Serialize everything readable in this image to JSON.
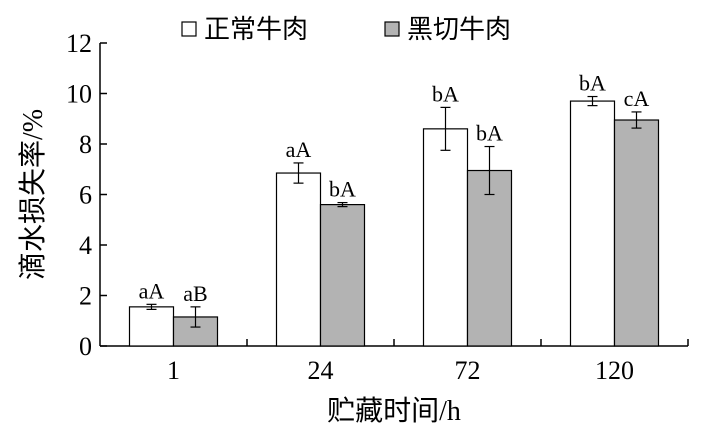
{
  "chart_data": {
    "type": "bar",
    "categories": [
      "1",
      "24",
      "72",
      "120"
    ],
    "series": [
      {
        "name": "正常牛肉",
        "color": "#ffffff",
        "values": [
          1.55,
          6.85,
          8.6,
          9.7
        ],
        "errors": [
          0.1,
          0.4,
          0.85,
          0.18
        ],
        "labels": [
          "aA",
          "aA",
          "bA",
          "bA"
        ]
      },
      {
        "name": "黑切牛肉",
        "color": "#b3b3b3",
        "values": [
          1.15,
          5.6,
          6.95,
          8.95
        ],
        "errors": [
          0.4,
          0.08,
          0.95,
          0.32
        ],
        "labels": [
          "aB",
          "bA",
          "bA",
          "cA"
        ]
      }
    ],
    "xlabel": "贮藏时间/h",
    "ylabel": "滴水损失率/%",
    "ylim": [
      0,
      12
    ],
    "yticks": [
      0,
      2,
      4,
      6,
      8,
      10,
      12
    ],
    "grid": false,
    "legend_position": "top"
  }
}
